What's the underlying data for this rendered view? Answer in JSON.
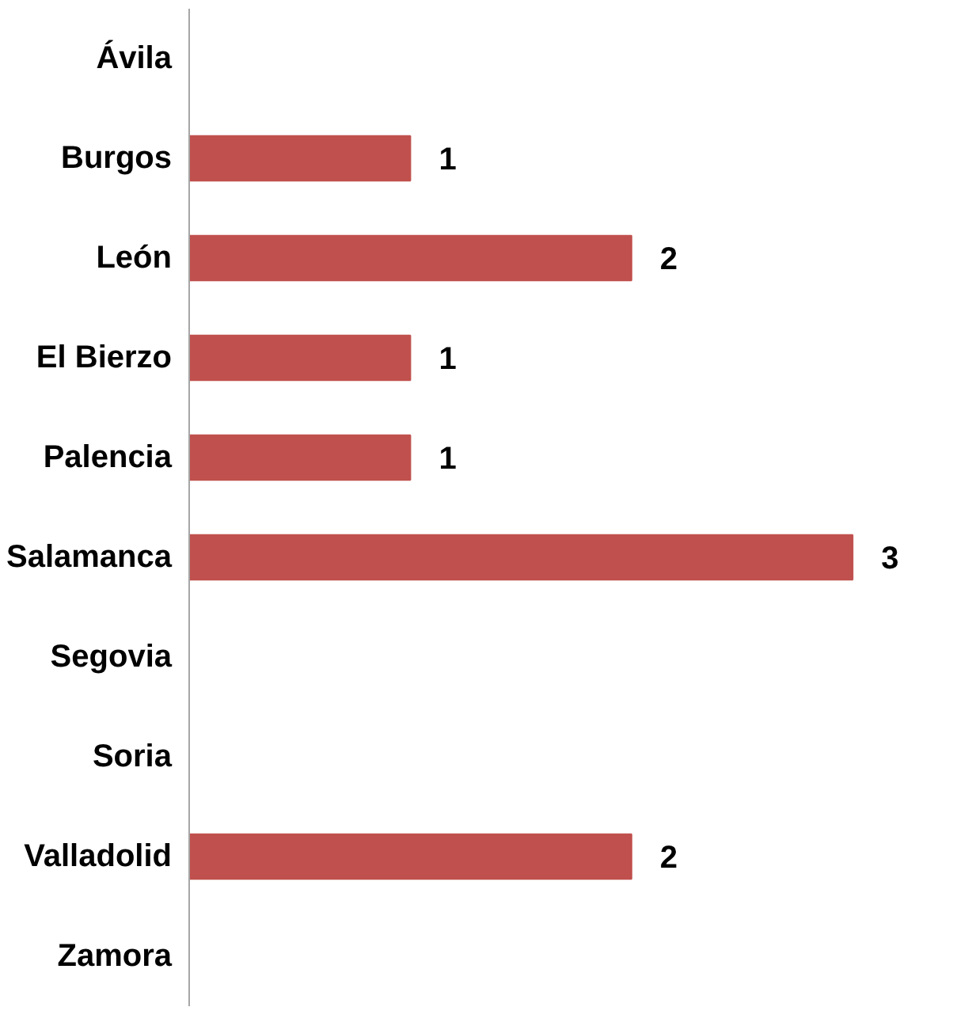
{
  "chart_data": {
    "type": "bar",
    "orientation": "horizontal",
    "categories": [
      "Ávila",
      "Burgos",
      "León",
      "El Bierzo",
      "Palencia",
      "Salamanca",
      "Segovia",
      "Soria",
      "Valladolid",
      "Zamora"
    ],
    "values": [
      0,
      1,
      2,
      1,
      1,
      3,
      0,
      0,
      2,
      0
    ],
    "value_labels": [
      null,
      "1",
      "2",
      "1",
      "1",
      "3",
      null,
      null,
      "2",
      null
    ],
    "color": "#c0504d",
    "grid": false
  }
}
